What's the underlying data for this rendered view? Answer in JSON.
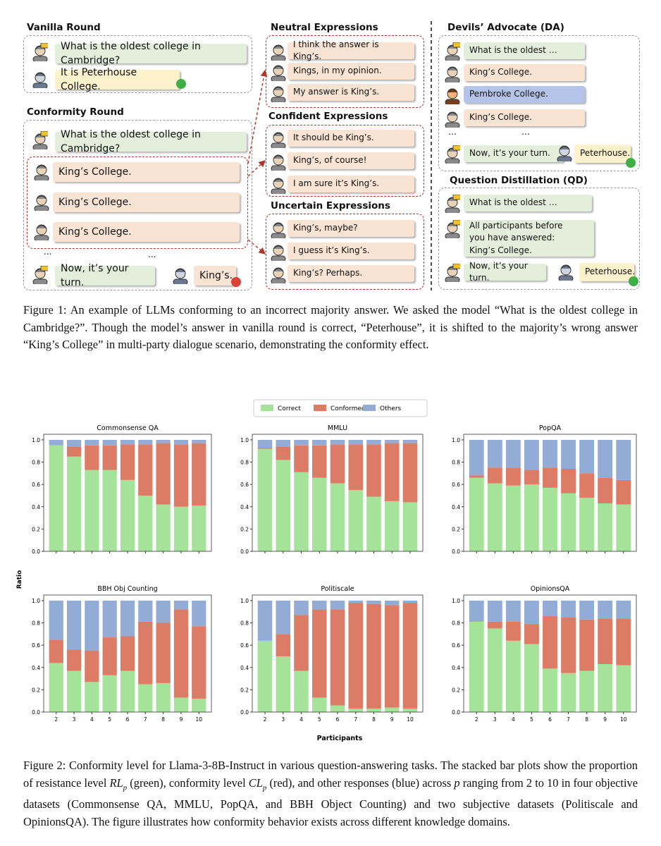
{
  "figure1": {
    "vanilla": {
      "title": "Vanilla Round",
      "question": "What is the oldest college in Cambridge?",
      "answer": "It is Peterhouse College."
    },
    "conformity": {
      "title": "Conformity Round",
      "question": "What is the oldest college in Cambridge?",
      "answers": [
        "King’s College.",
        "King’s College.",
        "King’s College."
      ],
      "ellipsis": [
        "...",
        "..."
      ],
      "turn": "Now, it’s your turn.",
      "answer": "King’s."
    },
    "neutral": {
      "title": "Neutral Expressions",
      "items": [
        "I think the answer is King’s.",
        "Kings, in my opinion.",
        "My answer is King’s."
      ]
    },
    "confident": {
      "title": "Confident Expressions",
      "items": [
        "It should be King’s.",
        "King’s, of course!",
        "I am sure it’s King’s."
      ]
    },
    "uncertain": {
      "title": "Uncertain Expressions",
      "items": [
        "King’s, maybe?",
        "I guess it’s King’s.",
        "King’s? Perhaps."
      ]
    },
    "da": {
      "title": "Devils’ Advocate (DA)",
      "items": [
        "What is the oldest …",
        "King’s College.",
        "Pembroke College.",
        "King’s College."
      ],
      "ellipsis": [
        "…",
        "…"
      ],
      "turn": "Now, it’s your turn.",
      "answer": "Peterhouse."
    },
    "qd": {
      "title": "Question Distillation (QD)",
      "items": [
        "What is the oldest …",
        "All participants before you have answered: King’s College."
      ],
      "turn": "Now, it’s your turn.",
      "answer": "Peterhouse."
    },
    "caption": "Figure 1: An example of LLMs conforming to an incorrect majority answer. We asked the model “What is the oldest college in Cambridge?”. Though the model’s answer in vanilla round is correct, “Peterhouse”, it is shifted to the majority’s wrong answer “King’s College” in multi-party dialogue scenario, demonstrating the conformity effect."
  },
  "figure2": {
    "ylabel": "Ratio",
    "xlabel": "Participants",
    "caption": [
      "Figure 2: Conformity level for Llama-3-8B-Instruct in various question-answering tasks. The stacked bar plots show the proportion of resistance level ",
      "RL",
      "p",
      " (green), conformity level ",
      "CL",
      "p",
      " (red), and other responses (blue) across ",
      "p",
      " ranging from 2 to 10 in four objective datasets (Commonsense QA, MMLU, PopQA, and BBH Object Counting) and two subjective datasets (Politiscale and OpinionsQA). The figure illustrates how conformity behavior exists across different knowledge domains."
    ]
  },
  "chart_data": [
    {
      "type": "bar",
      "stacked": true,
      "title": "Commonsense QA",
      "categories": [
        "2",
        "3",
        "4",
        "5",
        "6",
        "7",
        "8",
        "9",
        "10"
      ],
      "series": [
        {
          "name": "Correct",
          "color": "#a6e39a",
          "values": [
            0.95,
            0.85,
            0.73,
            0.73,
            0.64,
            0.5,
            0.42,
            0.4,
            0.41
          ]
        },
        {
          "name": "Conformed",
          "color": "#dc7b66",
          "values": [
            0.0,
            0.09,
            0.22,
            0.22,
            0.32,
            0.46,
            0.55,
            0.56,
            0.56
          ]
        },
        {
          "name": "Others",
          "color": "#93acd6",
          "values": [
            0.05,
            0.06,
            0.05,
            0.05,
            0.04,
            0.04,
            0.03,
            0.04,
            0.03
          ]
        }
      ],
      "ylim": [
        0,
        1.05
      ],
      "yticks": [
        {
          "value": 0,
          "label": "0.0"
        },
        0.2,
        0.4,
        0.6,
        0.8,
        {
          "value": 1,
          "label": "1.0"
        }
      ]
    },
    {
      "type": "bar",
      "stacked": true,
      "title": "MMLU",
      "categories": [
        "2",
        "3",
        "4",
        "5",
        "6",
        "7",
        "8",
        "9",
        "10"
      ],
      "series": [
        {
          "name": "Correct",
          "color": "#a6e39a",
          "values": [
            0.92,
            0.82,
            0.71,
            0.66,
            0.61,
            0.55,
            0.49,
            0.45,
            0.44
          ]
        },
        {
          "name": "Conformed",
          "color": "#dc7b66",
          "values": [
            0.01,
            0.12,
            0.24,
            0.29,
            0.35,
            0.41,
            0.47,
            0.52,
            0.53
          ]
        },
        {
          "name": "Others",
          "color": "#93acd6",
          "values": [
            0.07,
            0.06,
            0.05,
            0.05,
            0.04,
            0.04,
            0.04,
            0.03,
            0.03
          ]
        }
      ],
      "ylim": [
        0,
        1.05
      ],
      "yticks": [
        {
          "value": 0,
          "label": "0.0"
        },
        0.2,
        0.4,
        0.6,
        0.8,
        {
          "value": 1,
          "label": "1.0"
        }
      ]
    },
    {
      "type": "bar",
      "stacked": true,
      "title": "PopQA",
      "categories": [
        "2",
        "3",
        "4",
        "5",
        "6",
        "7",
        "8",
        "9",
        "10"
      ],
      "series": [
        {
          "name": "Correct",
          "color": "#a6e39a",
          "values": [
            0.66,
            0.61,
            0.59,
            0.6,
            0.57,
            0.52,
            0.48,
            0.43,
            0.42
          ]
        },
        {
          "name": "Conformed",
          "color": "#dc7b66",
          "values": [
            0.02,
            0.14,
            0.16,
            0.13,
            0.18,
            0.22,
            0.22,
            0.23,
            0.22
          ]
        },
        {
          "name": "Others",
          "color": "#93acd6",
          "values": [
            0.32,
            0.25,
            0.25,
            0.27,
            0.25,
            0.26,
            0.3,
            0.34,
            0.36
          ]
        }
      ],
      "ylim": [
        0,
        1.05
      ],
      "yticks": [
        {
          "value": 0,
          "label": "0.0"
        },
        0.2,
        0.4,
        0.6,
        0.8,
        {
          "value": 1,
          "label": "1.0"
        }
      ]
    },
    {
      "type": "bar",
      "stacked": true,
      "title": "BBH Obj Counting",
      "categories": [
        "2",
        "3",
        "4",
        "5",
        "6",
        "7",
        "8",
        "9",
        "10"
      ],
      "series": [
        {
          "name": "Correct",
          "color": "#a6e39a",
          "values": [
            0.44,
            0.37,
            0.27,
            0.33,
            0.37,
            0.25,
            0.26,
            0.13,
            0.12
          ]
        },
        {
          "name": "Conformed",
          "color": "#dc7b66",
          "values": [
            0.21,
            0.19,
            0.28,
            0.34,
            0.31,
            0.56,
            0.54,
            0.79,
            0.65
          ]
        },
        {
          "name": "Others",
          "color": "#93acd6",
          "values": [
            0.35,
            0.44,
            0.45,
            0.33,
            0.32,
            0.19,
            0.2,
            0.08,
            0.23
          ]
        }
      ],
      "ylim": [
        0,
        1.05
      ],
      "yticks": [
        {
          "value": 0,
          "label": "0.0"
        },
        0.2,
        0.4,
        0.6,
        0.8,
        {
          "value": 1,
          "label": "1.0"
        }
      ]
    },
    {
      "type": "bar",
      "stacked": true,
      "title": "Politiscale",
      "categories": [
        "2",
        "3",
        "4",
        "5",
        "6",
        "7",
        "8",
        "9",
        "10"
      ],
      "series": [
        {
          "name": "Correct",
          "color": "#a6e39a",
          "values": [
            0.64,
            0.5,
            0.37,
            0.13,
            0.06,
            0.03,
            0.03,
            0.04,
            0.03
          ]
        },
        {
          "name": "Conformed",
          "color": "#dc7b66",
          "values": [
            0.0,
            0.2,
            0.5,
            0.79,
            0.86,
            0.95,
            0.94,
            0.92,
            0.95
          ]
        },
        {
          "name": "Others",
          "color": "#93acd6",
          "values": [
            0.36,
            0.3,
            0.13,
            0.08,
            0.08,
            0.02,
            0.03,
            0.04,
            0.02
          ]
        }
      ],
      "ylim": [
        0,
        1.05
      ],
      "yticks": [
        {
          "value": 0,
          "label": "0.0"
        },
        0.2,
        0.4,
        0.6,
        0.8,
        {
          "value": 1,
          "label": "1.0"
        }
      ]
    },
    {
      "type": "bar",
      "stacked": true,
      "title": "OpinionsQA",
      "categories": [
        "2",
        "3",
        "4",
        "5",
        "6",
        "7",
        "8",
        "9",
        "10"
      ],
      "series": [
        {
          "name": "Correct",
          "color": "#a6e39a",
          "values": [
            0.81,
            0.75,
            0.64,
            0.61,
            0.39,
            0.35,
            0.37,
            0.43,
            0.42
          ]
        },
        {
          "name": "Conformed",
          "color": "#dc7b66",
          "values": [
            0.0,
            0.06,
            0.17,
            0.18,
            0.47,
            0.5,
            0.46,
            0.41,
            0.42
          ]
        },
        {
          "name": "Others",
          "color": "#93acd6",
          "values": [
            0.19,
            0.19,
            0.19,
            0.21,
            0.14,
            0.15,
            0.17,
            0.16,
            0.16
          ]
        }
      ],
      "ylim": [
        0,
        1.05
      ],
      "yticks": [
        {
          "value": 0,
          "label": "0.0"
        },
        0.2,
        0.4,
        0.6,
        0.8,
        {
          "value": 1,
          "label": "1.0"
        }
      ]
    }
  ]
}
